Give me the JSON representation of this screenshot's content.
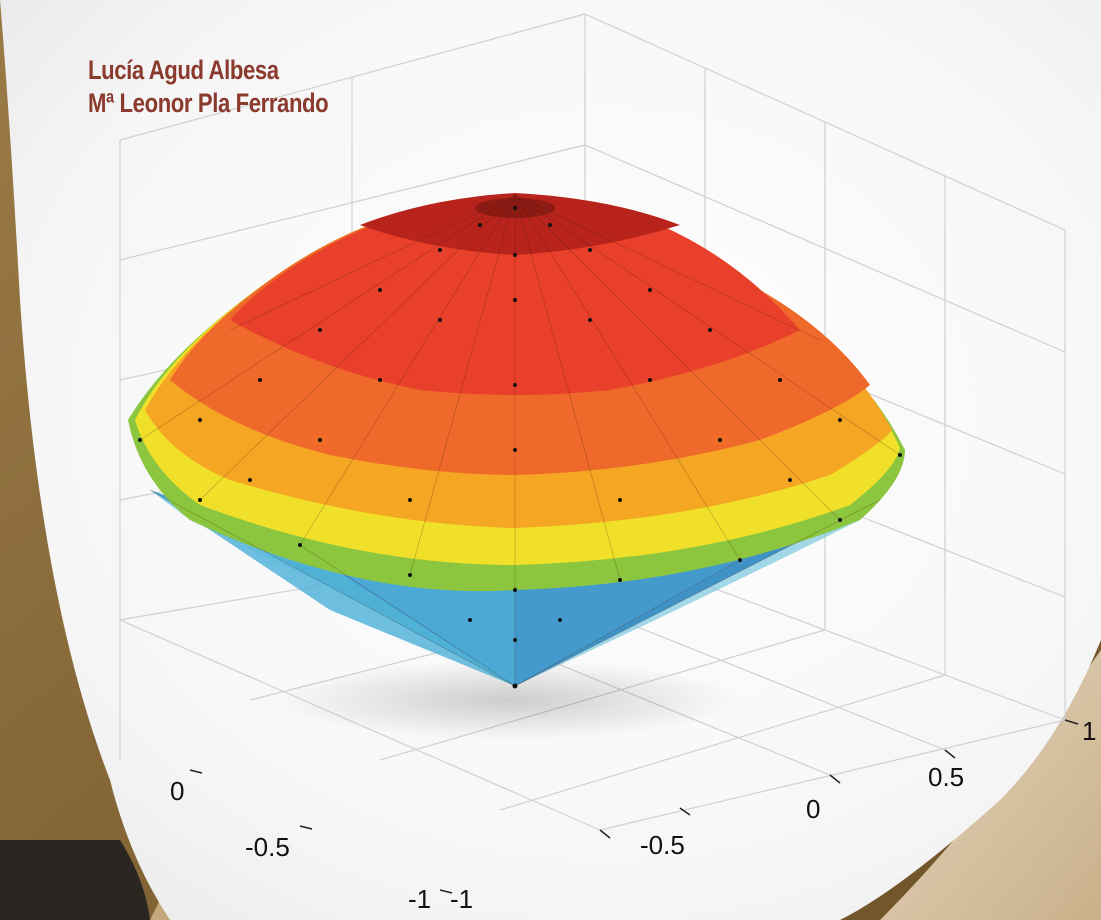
{
  "cover": {
    "authors": [
      "Lucía Agud Albesa",
      "Mª Leonor Pla Ferrando"
    ]
  },
  "plot": {
    "type": "3d-surface",
    "x_tick_labels": [
      "-1",
      "-0.5",
      "0"
    ],
    "y_tick_labels": [
      "-1",
      "-0.5",
      "0",
      "0.5",
      "1"
    ],
    "colormap": [
      "#1f63b5",
      "#3aa6d4",
      "#8cc63f",
      "#f0e02a",
      "#f5a623",
      "#e8402a",
      "#a61c1c"
    ]
  }
}
